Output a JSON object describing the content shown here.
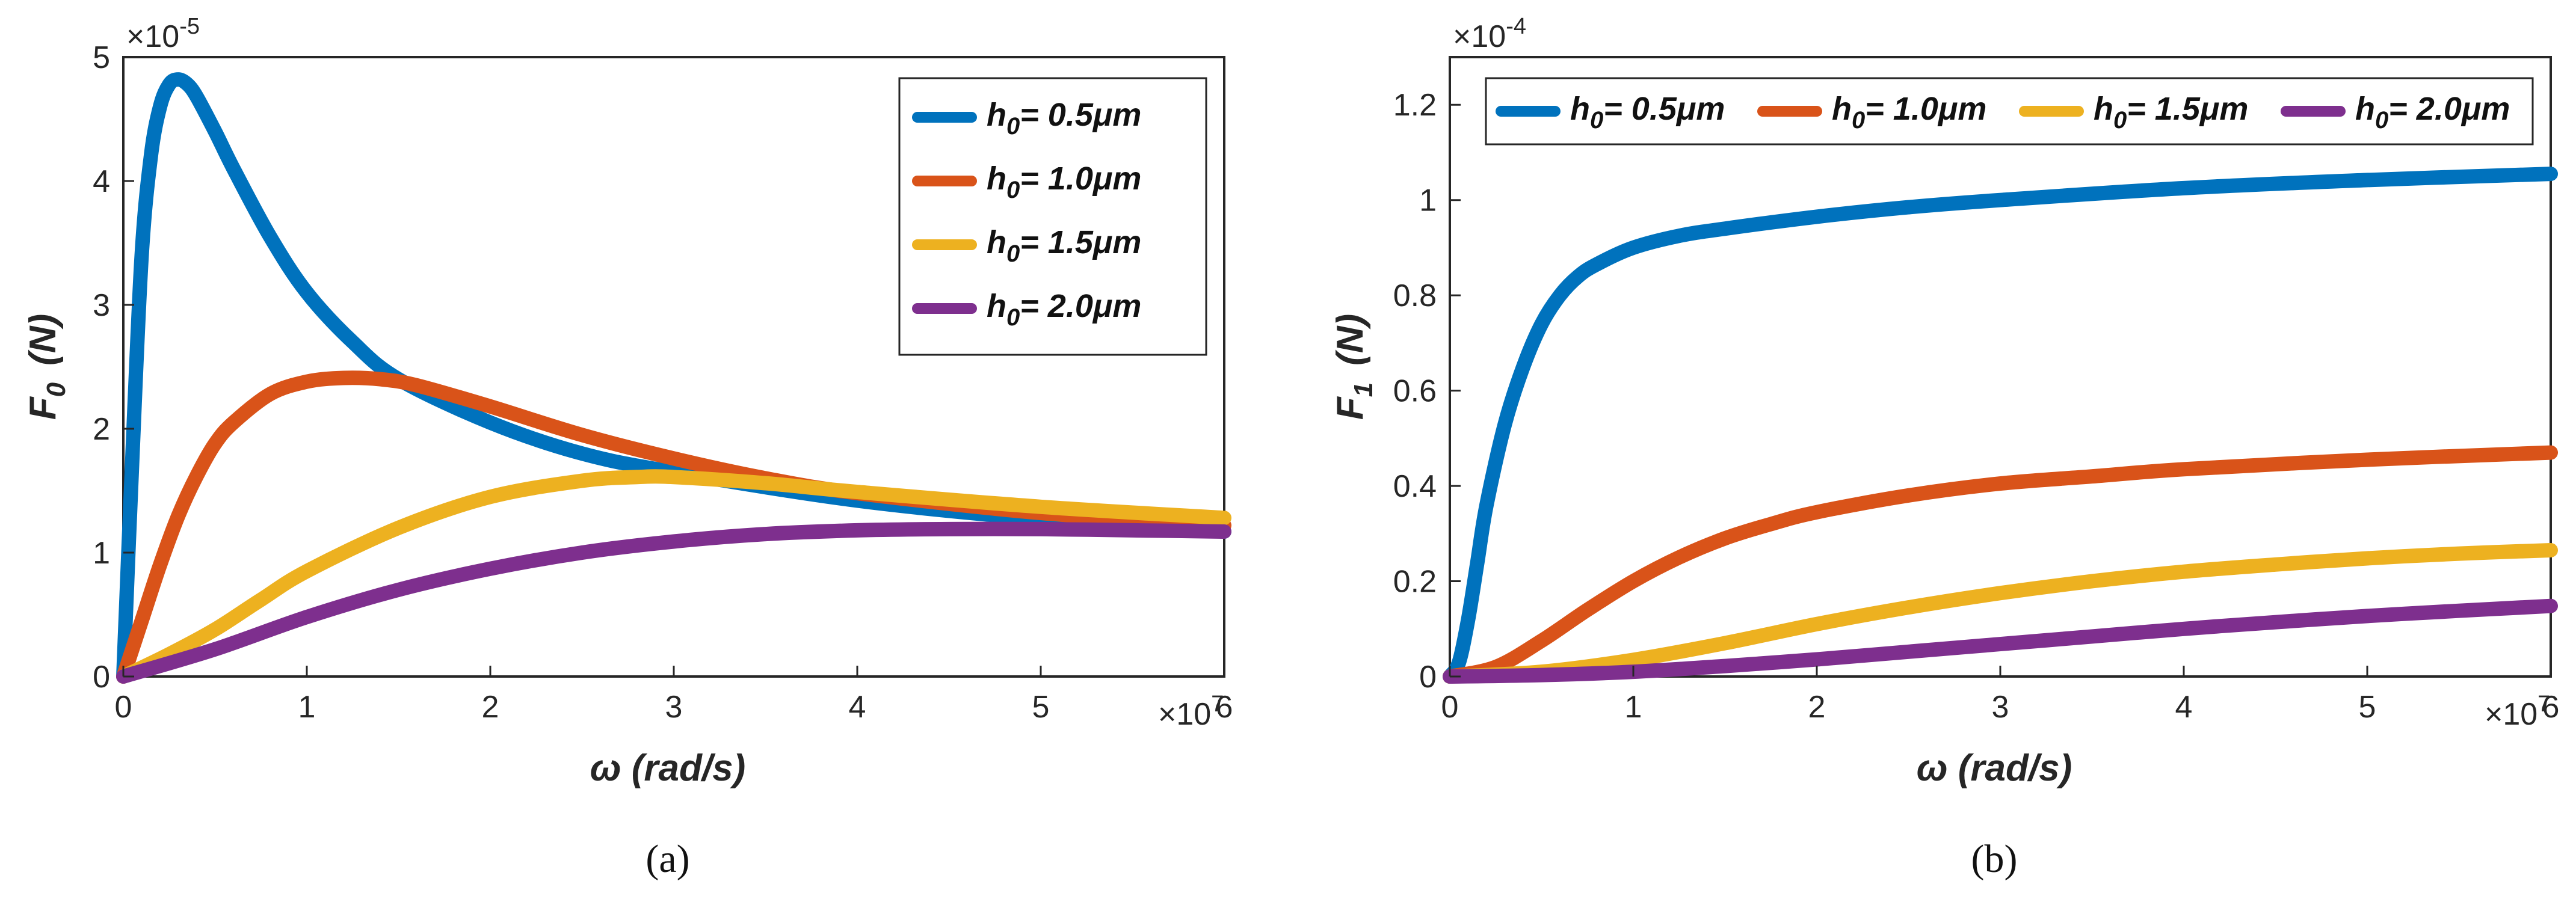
{
  "colors": {
    "c0": "#0072BD",
    "c1": "#D95319",
    "c2": "#EDB120",
    "c3": "#7E2F8E"
  },
  "chart_data": [
    {
      "type": "line",
      "caption": "(a)",
      "ylabel_main": "F",
      "ylabel_sub": "0",
      "ylabel_unit": "(N)",
      "xlabel": "ω  (rad/s)",
      "x_multiplier": "×10",
      "x_multiplier_exp": "7",
      "y_multiplier": "×10",
      "y_multiplier_exp": "-5",
      "xlim": [
        0,
        6
      ],
      "ylim": [
        0,
        5
      ],
      "xticks": [
        "0",
        "1",
        "2",
        "3",
        "4",
        "5",
        "6"
      ],
      "yticks": [
        "0",
        "1",
        "2",
        "3",
        "4",
        "5"
      ],
      "legend_position": "top-right",
      "series": [
        {
          "name": "h0 = 0.5μm",
          "legend_main": "h",
          "legend_sub": "0",
          "legend_rest": "= 0.5μm",
          "x": [
            0,
            0.05,
            0.1,
            0.15,
            0.2,
            0.25,
            0.3,
            0.35,
            0.4,
            0.5,
            0.6,
            0.8,
            1,
            1.25,
            1.5,
            2,
            2.5,
            3,
            4,
            5,
            6
          ],
          "y": [
            0,
            1.8,
            3.4,
            4.2,
            4.6,
            4.78,
            4.82,
            4.78,
            4.68,
            4.4,
            4.1,
            3.55,
            3.1,
            2.7,
            2.4,
            2.05,
            1.8,
            1.65,
            1.42,
            1.27,
            1.17
          ]
        },
        {
          "name": "h0 = 1.0μm",
          "legend_main": "h",
          "legend_sub": "0",
          "legend_rest": "= 1.0μm",
          "x": [
            0,
            0.1,
            0.2,
            0.3,
            0.4,
            0.5,
            0.6,
            0.8,
            1,
            1.2,
            1.4,
            1.6,
            2,
            2.5,
            3,
            3.5,
            4,
            5,
            6
          ],
          "y": [
            0,
            0.45,
            0.9,
            1.3,
            1.62,
            1.88,
            2.05,
            2.28,
            2.38,
            2.41,
            2.4,
            2.35,
            2.18,
            1.95,
            1.76,
            1.6,
            1.48,
            1.32,
            1.22
          ]
        },
        {
          "name": "h0 = 1.5μm",
          "legend_main": "h",
          "legend_sub": "0",
          "legend_rest": "= 1.5μm",
          "x": [
            0,
            0.25,
            0.5,
            0.75,
            1,
            1.5,
            2,
            2.5,
            2.8,
            3,
            3.5,
            4,
            5,
            6
          ],
          "y": [
            0,
            0.18,
            0.38,
            0.62,
            0.85,
            1.2,
            1.45,
            1.58,
            1.61,
            1.61,
            1.56,
            1.49,
            1.37,
            1.28
          ]
        },
        {
          "name": "h0 = 2.0μm",
          "legend_main": "h",
          "legend_sub": "0",
          "legend_rest": "= 2.0μm",
          "x": [
            0,
            0.5,
            1,
            1.5,
            2,
            2.5,
            3,
            3.5,
            4,
            4.5,
            5,
            5.5,
            6
          ],
          "y": [
            0,
            0.22,
            0.48,
            0.7,
            0.87,
            1.0,
            1.09,
            1.15,
            1.18,
            1.19,
            1.19,
            1.18,
            1.17
          ]
        }
      ]
    },
    {
      "type": "line",
      "caption": "(b)",
      "ylabel_main": "F",
      "ylabel_sub": "1",
      "ylabel_unit": "(N)",
      "xlabel": "ω  (rad/s)",
      "x_multiplier": "×10",
      "x_multiplier_exp": "7",
      "y_multiplier": "×10",
      "y_multiplier_exp": "-4",
      "xlim": [
        0,
        6
      ],
      "ylim": [
        0,
        1.3
      ],
      "xticks": [
        "0",
        "1",
        "2",
        "3",
        "4",
        "5",
        "6"
      ],
      "ytick_values": [
        0,
        0.2,
        0.4,
        0.6,
        0.8,
        1,
        1.2
      ],
      "yticks": [
        "0",
        "0.2",
        "0.4",
        "0.6",
        "0.8",
        "1",
        "1.2"
      ],
      "legend_position": "top",
      "series": [
        {
          "name": "h0 = 0.5μm",
          "legend_main": "h",
          "legend_sub": "0",
          "legend_rest": "= 0.5μm",
          "x": [
            0,
            0.05,
            0.1,
            0.15,
            0.2,
            0.3,
            0.4,
            0.5,
            0.6,
            0.7,
            0.8,
            1,
            1.25,
            1.5,
            2,
            2.5,
            3,
            4,
            5,
            6
          ],
          "y": [
            0,
            0.03,
            0.12,
            0.24,
            0.36,
            0.53,
            0.65,
            0.74,
            0.8,
            0.84,
            0.865,
            0.9,
            0.925,
            0.94,
            0.965,
            0.985,
            1.0,
            1.025,
            1.042,
            1.055
          ]
        },
        {
          "name": "h0 = 1.0μm",
          "legend_main": "h",
          "legend_sub": "0",
          "legend_rest": "= 1.0μm",
          "x": [
            0,
            0.25,
            0.5,
            0.75,
            1,
            1.25,
            1.5,
            1.75,
            2,
            2.5,
            3,
            3.5,
            4,
            5,
            6
          ],
          "y": [
            0,
            0.02,
            0.075,
            0.14,
            0.2,
            0.25,
            0.29,
            0.32,
            0.345,
            0.38,
            0.405,
            0.42,
            0.435,
            0.455,
            0.47
          ]
        },
        {
          "name": "h0 = 1.5μm",
          "legend_main": "h",
          "legend_sub": "0",
          "legend_rest": "= 1.5μm",
          "x": [
            0,
            0.5,
            1,
            1.5,
            2,
            2.5,
            3,
            3.5,
            4,
            4.5,
            5,
            5.5,
            6
          ],
          "y": [
            0,
            0.01,
            0.035,
            0.07,
            0.11,
            0.145,
            0.175,
            0.2,
            0.22,
            0.235,
            0.248,
            0.258,
            0.265
          ]
        },
        {
          "name": "h0 = 2.0μm",
          "legend_main": "h",
          "legend_sub": "0",
          "legend_rest": "= 2.0μm",
          "x": [
            0,
            0.5,
            1,
            1.5,
            2,
            2.5,
            3,
            3.5,
            4,
            4.5,
            5,
            5.5,
            6
          ],
          "y": [
            0,
            0.003,
            0.01,
            0.022,
            0.036,
            0.052,
            0.068,
            0.084,
            0.1,
            0.114,
            0.127,
            0.138,
            0.148
          ]
        }
      ]
    }
  ]
}
